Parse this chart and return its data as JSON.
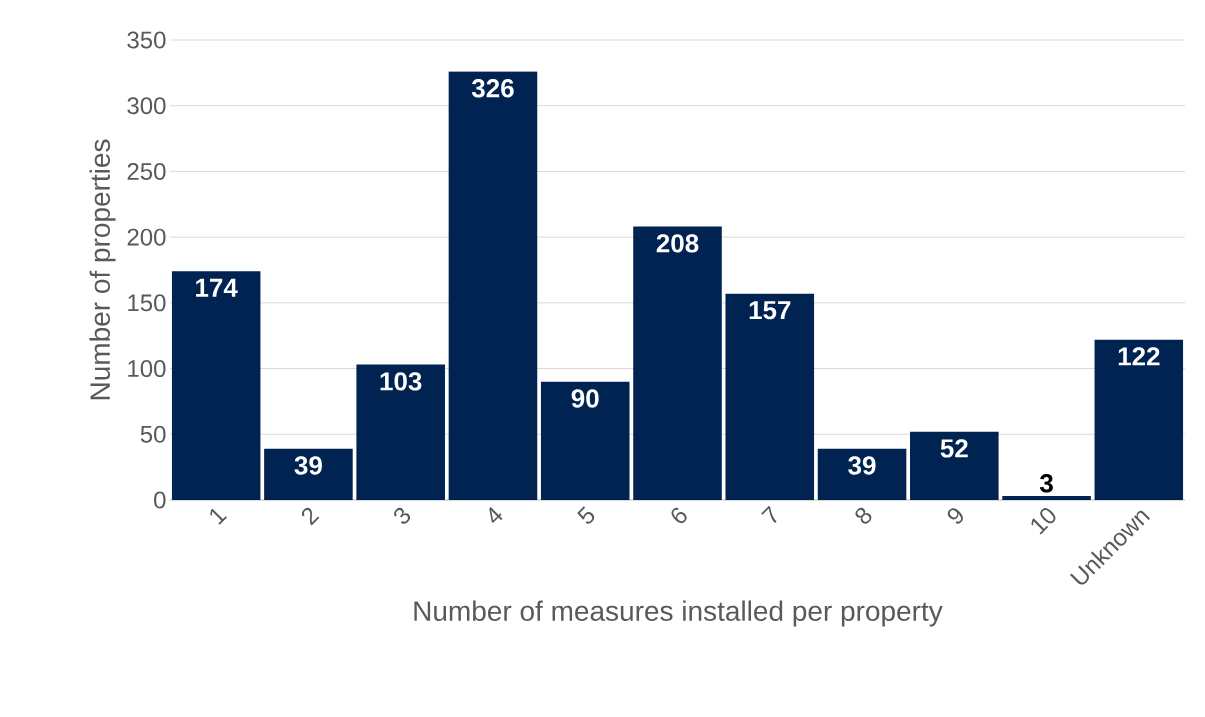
{
  "chart_data": {
    "type": "bar",
    "xlabel": "Number of measures installed per property",
    "ylabel": "Number of properties",
    "categories": [
      "1",
      "2",
      "3",
      "4",
      "5",
      "6",
      "7",
      "8",
      "9",
      "10",
      "Unknown"
    ],
    "values": [
      174,
      39,
      103,
      326,
      90,
      208,
      157,
      39,
      52,
      3,
      122
    ],
    "color": "#002352",
    "ylim": [
      0,
      350
    ],
    "yticks": [
      0,
      50,
      100,
      150,
      200,
      250,
      300,
      350
    ],
    "grid": "y",
    "data_labels": true
  }
}
